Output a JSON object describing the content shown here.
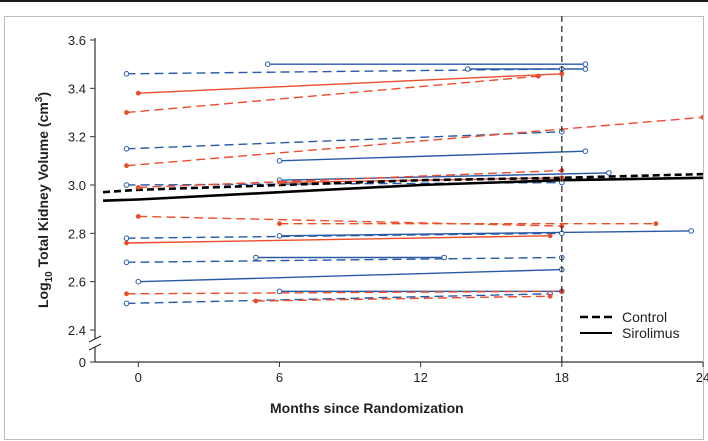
{
  "chart_data": {
    "type": "line",
    "xlabel": "Months since Randomization",
    "ylabel": "Log10 Total Kidney Volume (cm3)",
    "ylabel_parts": {
      "pre": "Log",
      "sub": "10",
      "mid": " Total Kidney Volume (cm",
      "sup": "3",
      "post": ")"
    },
    "xlim": [
      -1.5,
      24
    ],
    "ylim": [
      2.4,
      3.6
    ],
    "x_ticks": [
      "0",
      "6",
      "12",
      "18",
      "24"
    ],
    "y_ticks": [
      "2.4",
      "2.6",
      "2.8",
      "3.0",
      "3.2",
      "3.4",
      "3.6"
    ],
    "y_zero_label": "0",
    "reference_line_x": 18,
    "legend": {
      "position": "bottom-right",
      "entries": [
        "Control",
        "Sirolimus"
      ]
    },
    "colors": {
      "sirolimus_patient": "#2a5aa6",
      "control_patient": "#ec4d2b",
      "mean": "#000000"
    },
    "series": [
      {
        "name": "Control",
        "group": "mean",
        "style": "dashed",
        "x": [
          -1.5,
          0,
          6,
          12,
          18,
          24
        ],
        "y": [
          2.97,
          2.98,
          3.0,
          3.02,
          3.03,
          3.045
        ]
      },
      {
        "name": "Sirolimus",
        "group": "mean",
        "style": "solid",
        "x": [
          -1.5,
          0,
          6,
          12,
          18,
          24
        ],
        "y": [
          2.935,
          2.94,
          2.97,
          3.0,
          3.02,
          3.03
        ]
      },
      {
        "group": "sirolimus",
        "style": "dashed",
        "x": [
          -0.5,
          18
        ],
        "y": [
          3.46,
          3.48
        ]
      },
      {
        "group": "sirolimus",
        "style": "solid",
        "x": [
          5.5,
          19
        ],
        "y": [
          3.5,
          3.5
        ]
      },
      {
        "group": "sirolimus",
        "style": "solid",
        "x": [
          14,
          19
        ],
        "y": [
          3.48,
          3.48
        ]
      },
      {
        "group": "sirolimus",
        "style": "dashed",
        "x": [
          -0.5,
          18
        ],
        "y": [
          3.15,
          3.22
        ]
      },
      {
        "group": "sirolimus",
        "style": "solid",
        "x": [
          6,
          19
        ],
        "y": [
          3.1,
          3.14
        ]
      },
      {
        "group": "sirolimus",
        "style": "dashed",
        "x": [
          -0.5,
          18
        ],
        "y": [
          3.0,
          3.01
        ]
      },
      {
        "group": "sirolimus",
        "style": "solid",
        "x": [
          6,
          20
        ],
        "y": [
          3.02,
          3.05
        ]
      },
      {
        "group": "sirolimus",
        "style": "dashed",
        "x": [
          -0.5,
          18
        ],
        "y": [
          2.78,
          2.8
        ]
      },
      {
        "group": "sirolimus",
        "style": "solid",
        "x": [
          6,
          23.5
        ],
        "y": [
          2.79,
          2.81
        ]
      },
      {
        "group": "sirolimus",
        "style": "dashed",
        "x": [
          -0.5,
          18
        ],
        "y": [
          2.68,
          2.7
        ]
      },
      {
        "group": "sirolimus",
        "style": "solid",
        "x": [
          5,
          13
        ],
        "y": [
          2.7,
          2.7
        ]
      },
      {
        "group": "sirolimus",
        "style": "solid",
        "x": [
          0,
          18
        ],
        "y": [
          2.6,
          2.65
        ]
      },
      {
        "group": "sirolimus",
        "style": "solid",
        "x": [
          6,
          18
        ],
        "y": [
          2.56,
          2.56
        ]
      },
      {
        "group": "sirolimus",
        "style": "dashed",
        "x": [
          -0.5,
          17.5
        ],
        "y": [
          2.51,
          2.55
        ]
      },
      {
        "group": "control",
        "style": "dashed",
        "x": [
          -0.5,
          17
        ],
        "y": [
          3.3,
          3.45
        ]
      },
      {
        "group": "control",
        "style": "solid",
        "x": [
          0,
          18
        ],
        "y": [
          3.38,
          3.46
        ]
      },
      {
        "group": "control",
        "style": "dashed",
        "x": [
          -0.5,
          24
        ],
        "y": [
          3.08,
          3.28
        ]
      },
      {
        "group": "control",
        "style": "dashed",
        "x": [
          0,
          18
        ],
        "y": [
          2.99,
          3.06
        ]
      },
      {
        "group": "control",
        "style": "solid",
        "x": [
          6,
          18
        ],
        "y": [
          3.01,
          3.03
        ]
      },
      {
        "group": "control",
        "style": "dashed",
        "x": [
          0,
          18
        ],
        "y": [
          2.87,
          2.83
        ]
      },
      {
        "group": "control",
        "style": "dashed",
        "x": [
          6,
          22
        ],
        "y": [
          2.84,
          2.84
        ]
      },
      {
        "group": "control",
        "style": "solid",
        "x": [
          -0.5,
          17.5
        ],
        "y": [
          2.76,
          2.79
        ]
      },
      {
        "group": "control",
        "style": "dashed",
        "x": [
          -0.5,
          18
        ],
        "y": [
          2.55,
          2.56
        ]
      },
      {
        "group": "control",
        "style": "dashed",
        "x": [
          5,
          17.5
        ],
        "y": [
          2.52,
          2.54
        ]
      }
    ]
  }
}
